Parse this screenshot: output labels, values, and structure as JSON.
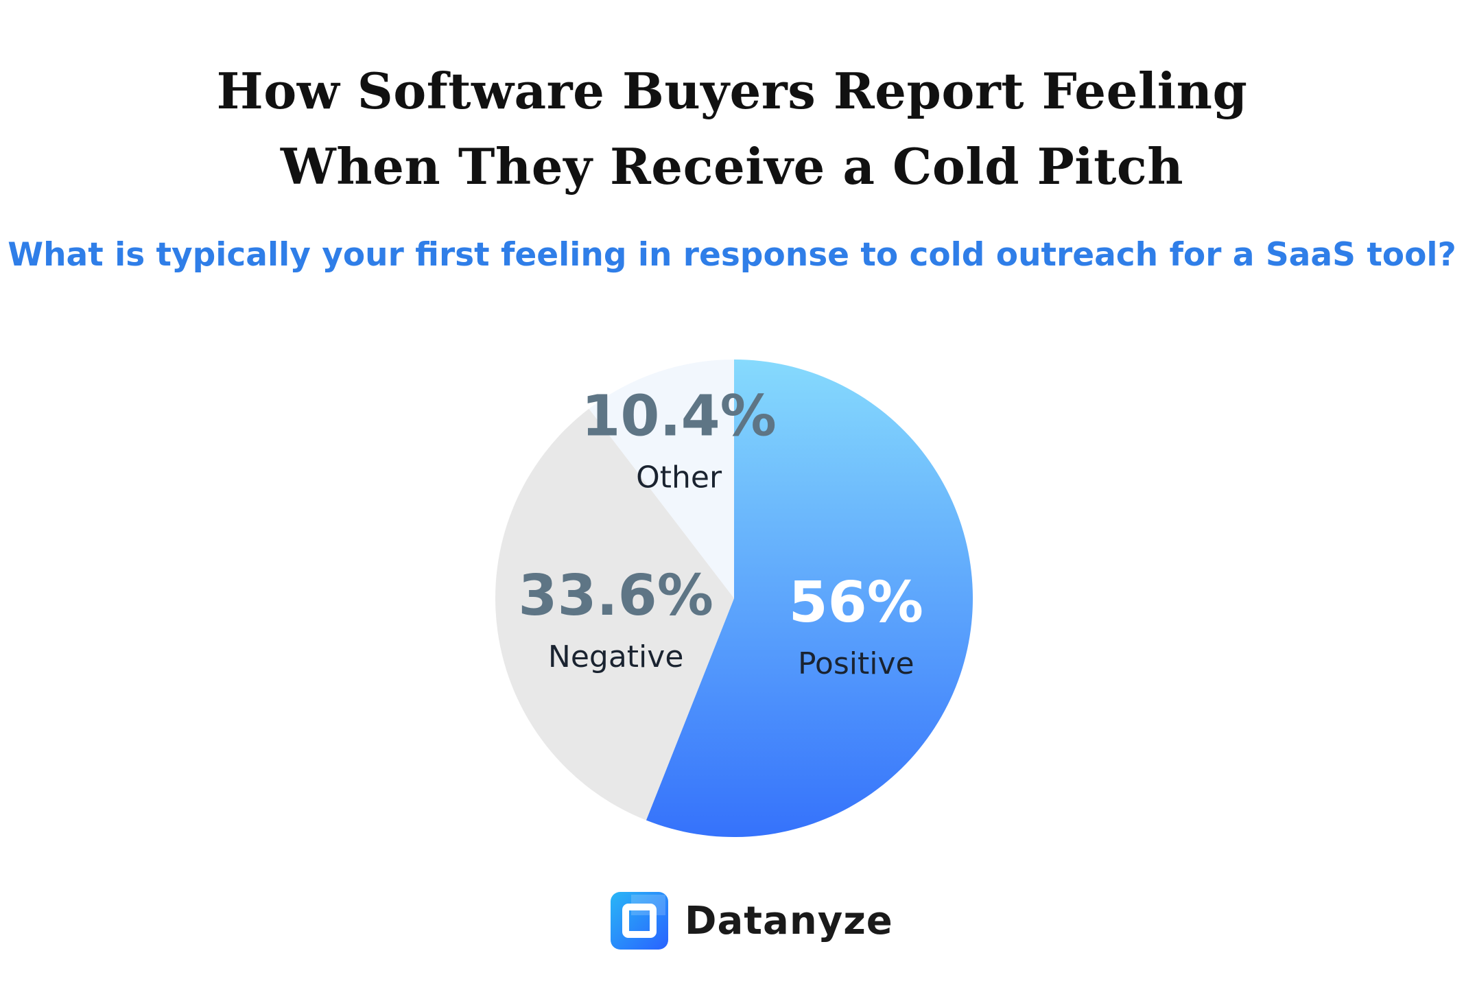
{
  "header": {
    "title_line1": "How Software Buyers Report Feeling",
    "title_line2": "When They Receive a Cold Pitch",
    "subtitle": "What is typically your first feeling in response to cold outreach for a SaaS tool?"
  },
  "chart_data": {
    "type": "pie",
    "title": "How Software Buyers Report Feeling When They Receive a Cold Pitch",
    "subtitle": "What is typically your first feeling in response to cold outreach for a SaaS tool?",
    "start": "12 o'clock, clockwise",
    "slices": [
      {
        "label": "Positive",
        "value": 56,
        "value_label": "56%",
        "color_top": "#86dafd",
        "color_bottom": "#3572fb",
        "label_color": "#1a2330",
        "value_color": "#ffffff"
      },
      {
        "label": "Negative",
        "value": 33.6,
        "value_label": "33.6%",
        "color": "#e8e8e8",
        "label_color": "#1a2330",
        "value_color": "#5e7585"
      },
      {
        "label": "Other",
        "value": 10.4,
        "value_label": "10.4%",
        "color": "#f2f7fd",
        "label_color": "#1a2330",
        "value_color": "#5e7585"
      }
    ]
  },
  "brand": {
    "name": "Datanyze",
    "logo_icon": "datanyze-logo-icon",
    "colors": {
      "light": "#29b6f6",
      "dark": "#2962ff"
    }
  }
}
